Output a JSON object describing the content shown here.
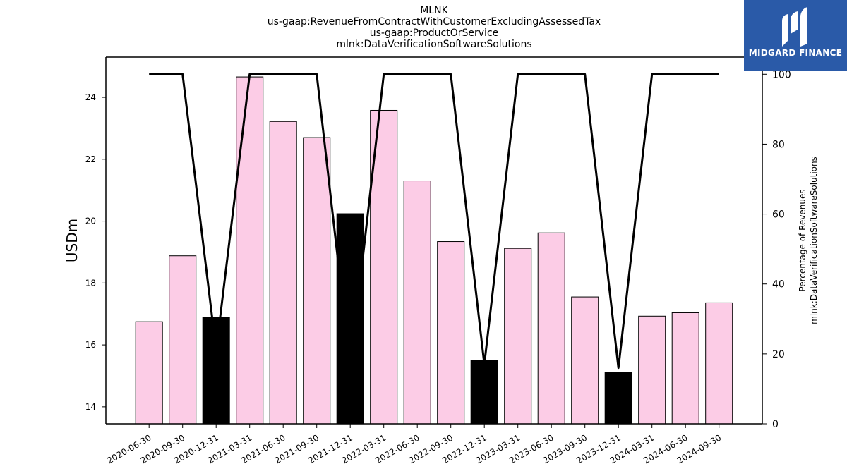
{
  "title_lines": [
    "MLNK",
    "us-gaap:RevenueFromContractWithCustomerExcludingAssessedTax",
    "us-gaap:ProductOrService",
    "mlnk:DataVerificationSoftwareSolutions"
  ],
  "logo": {
    "text": "MIDGARD FINANCE",
    "bg_color": "#2a5aa8"
  },
  "colors": {
    "bar_default": "#fccce6",
    "bar_highlight": "#000000",
    "line": "#000000"
  },
  "chart_data": {
    "type": "bar",
    "categories": [
      "2020-06-30",
      "2020-09-30",
      "2020-12-31",
      "2021-03-31",
      "2021-06-30",
      "2021-09-30",
      "2021-12-31",
      "2022-03-31",
      "2022-06-30",
      "2022-09-30",
      "2022-12-31",
      "2023-03-31",
      "2023-06-30",
      "2023-09-30",
      "2023-12-31",
      "2024-03-31",
      "2024-06-30",
      "2024-09-30"
    ],
    "values": [
      16.75,
      18.88,
      16.88,
      24.66,
      23.22,
      22.7,
      20.24,
      23.58,
      21.3,
      19.34,
      15.51,
      19.12,
      19.62,
      17.55,
      15.12,
      16.93,
      17.04,
      17.36
    ],
    "highlight": [
      false,
      false,
      true,
      false,
      false,
      false,
      true,
      false,
      false,
      false,
      true,
      false,
      false,
      false,
      true,
      false,
      false,
      false
    ],
    "ylabel": "USDm",
    "ylim": [
      13.45,
      25.3
    ],
    "yticks": [
      14,
      16,
      18,
      20,
      22,
      24
    ],
    "secondary_axis": {
      "label_lines": [
        "Percentage of Revenues",
        "mlnk:DataVerificationSoftwareSolutions"
      ],
      "ylim": [
        0,
        104.9
      ],
      "yticks": [
        0,
        20,
        40,
        60,
        80,
        100
      ],
      "series_values": [
        100,
        100,
        21,
        100,
        100,
        100,
        16,
        100,
        100,
        100,
        17,
        100,
        100,
        100,
        16,
        100,
        100,
        100
      ]
    }
  }
}
